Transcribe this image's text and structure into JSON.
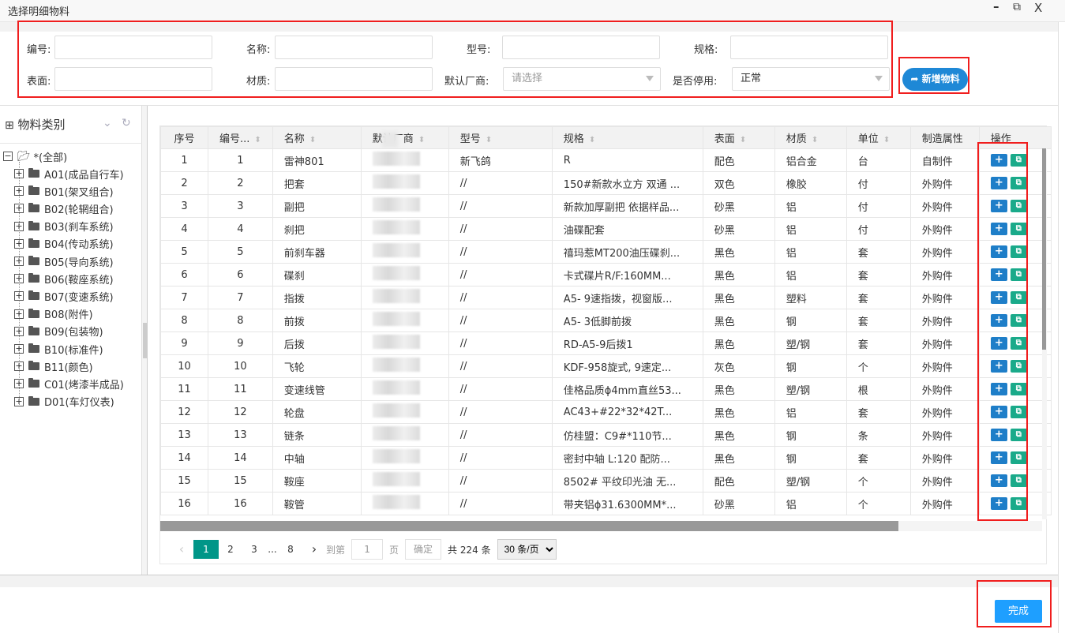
{
  "window": {
    "title": "选择明细物料",
    "minimize_icon": "minimize-icon",
    "maximize_icon": "maximize-icon",
    "close_icon": "close-icon"
  },
  "filters": {
    "code_label": "编号:",
    "name_label": "名称:",
    "model_label": "型号:",
    "spec_label": "规格:",
    "surface_label": "表面:",
    "material_label": "材质:",
    "supplier_label": "默认厂商:",
    "disabled_label": "是否停用:",
    "supplier_placeholder": "请选择",
    "disabled_value": "正常",
    "add_button": "新增物料"
  },
  "sidebar": {
    "title": "物料类别",
    "root": "*(全部)",
    "items": [
      "A01(成品自行车)",
      "B01(架叉组合)",
      "B02(轮辋组合)",
      "B03(刹车系统)",
      "B04(传动系统)",
      "B05(导向系统)",
      "B06(鞍座系统)",
      "B07(变速系统)",
      "B08(附件)",
      "B09(包装物)",
      "B10(标准件)",
      "B11(颜色)",
      "C01(烤漆半成品)",
      "D01(车灯仪表)"
    ]
  },
  "table": {
    "headers": [
      "序号",
      "编号...",
      "名称",
      "默认厂商",
      "型号",
      "规格",
      "表面",
      "材质",
      "单位",
      "制造属性",
      "操作"
    ],
    "rows": [
      [
        "1",
        "1",
        "雷神801",
        "",
        "新飞鸽",
        "R",
        "配色",
        "铝合金",
        "台",
        "自制件"
      ],
      [
        "2",
        "2",
        "把套",
        "",
        "//",
        "150#新款水立方 双通 ...",
        "双色",
        "橡胶",
        "付",
        "外购件"
      ],
      [
        "3",
        "3",
        "副把",
        "",
        "//",
        "新款加厚副把 依据样品...",
        "砂黑",
        "铝",
        "付",
        "外购件"
      ],
      [
        "4",
        "4",
        "刹把",
        "",
        "//",
        "油碟配套",
        "砂黑",
        "铝",
        "付",
        "外购件"
      ],
      [
        "5",
        "5",
        "前刹车器",
        "",
        "//",
        "禧玛惹MT200油压碟刹...",
        "黑色",
        "铝",
        "套",
        "外购件"
      ],
      [
        "6",
        "6",
        "碟刹",
        "",
        "//",
        "卡式碟片R/F:160MM...",
        "黑色",
        "铝",
        "套",
        "外购件"
      ],
      [
        "7",
        "7",
        "指拨",
        "",
        "//",
        "A5- 9速指拨，视窗版...",
        "黑色",
        "塑料",
        "套",
        "外购件"
      ],
      [
        "8",
        "8",
        "前拨",
        "",
        "//",
        "A5- 3低脚前拨",
        "黑色",
        "钢",
        "套",
        "外购件"
      ],
      [
        "9",
        "9",
        "后拨",
        "",
        "//",
        "RD-A5-9后拨1",
        "黑色",
        "塑/钢",
        "套",
        "外购件"
      ],
      [
        "10",
        "10",
        "飞轮",
        "",
        "//",
        "KDF-958旋式, 9速定...",
        "灰色",
        "钢",
        "个",
        "外购件"
      ],
      [
        "11",
        "11",
        "变速线管",
        "",
        "//",
        "佳格品质ϕ4mm直丝53...",
        "黑色",
        "塑/钢",
        "根",
        "外购件"
      ],
      [
        "12",
        "12",
        "轮盘",
        "",
        "//",
        "AC43+#22*32*42T...",
        "黑色",
        "铝",
        "套",
        "外购件"
      ],
      [
        "13",
        "13",
        "链条",
        "",
        "//",
        "仿桂盟：C9#*110节...",
        "黑色",
        "钢",
        "条",
        "外购件"
      ],
      [
        "14",
        "14",
        "中轴",
        "",
        "//",
        "密封中轴 L:120 配防...",
        "黑色",
        "钢",
        "套",
        "外购件"
      ],
      [
        "15",
        "15",
        "鞍座",
        "",
        "//",
        "8502# 平纹印光油 无...",
        "配色",
        "塑/钢",
        "个",
        "外购件"
      ],
      [
        "16",
        "16",
        "鞍管",
        "",
        "//",
        "带夹铝ϕ31.6300MM*...",
        "砂黑",
        "铝",
        "个",
        "外购件"
      ]
    ]
  },
  "pagination": {
    "pages": [
      "1",
      "2",
      "3",
      "...",
      "8"
    ],
    "current": "1",
    "goto_label": "到第",
    "goto_value": "1",
    "page_suffix": "页",
    "confirm": "确定",
    "total": "共 224 条",
    "page_size": "30 条/页"
  },
  "footer": {
    "done_button": "完成"
  },
  "colors": {
    "primary": "#1e88d6",
    "edit": "#1aaa8a",
    "pager_active": "#009688",
    "done": "#1e9fff",
    "annotation": "#f01e1e"
  }
}
